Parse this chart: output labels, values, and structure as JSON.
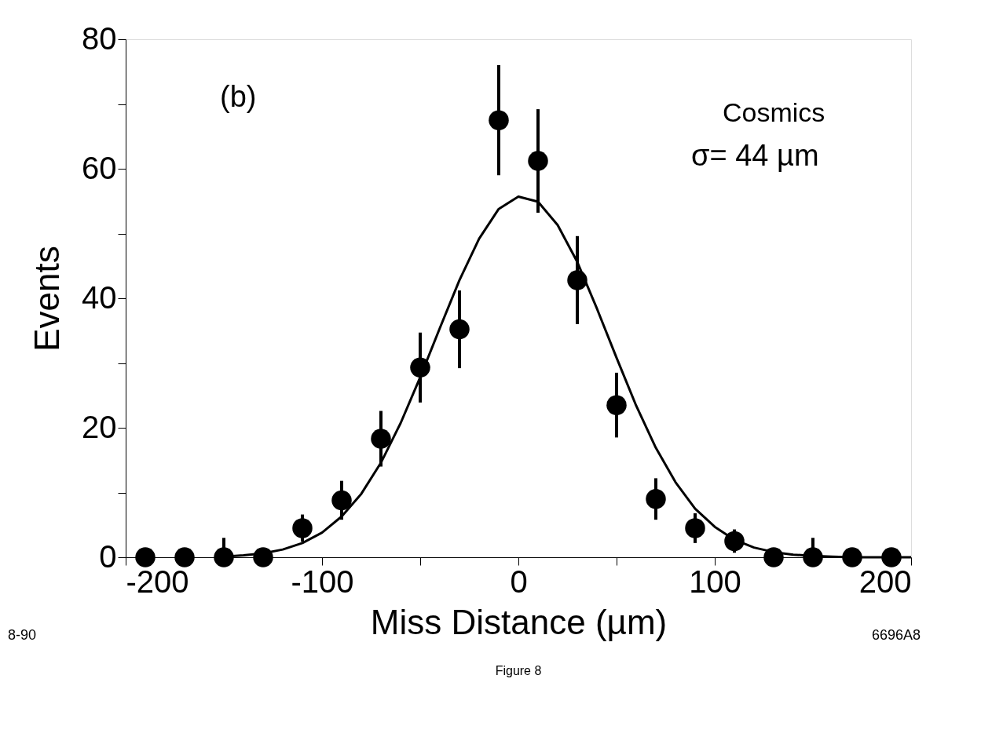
{
  "chart_data": {
    "type": "scatter",
    "xlabel": "Miss Distance    (µm)",
    "ylabel": "Events",
    "xlim": [
      -200,
      200
    ],
    "ylim": [
      0,
      80
    ],
    "xticks": [
      -200,
      {
        "value": -150,
        "label": null
      },
      -100,
      {
        "value": -50,
        "label": null
      },
      0,
      {
        "value": 50,
        "label": null
      },
      100,
      {
        "value": 150,
        "label": null
      },
      200
    ],
    "yticks": [
      0,
      {
        "value": 10,
        "label": null
      },
      20,
      {
        "value": 30,
        "label": null
      },
      40,
      {
        "value": 50,
        "label": null
      },
      60,
      {
        "value": 70,
        "label": null
      },
      80
    ],
    "grid": false,
    "marker": "circle",
    "annotations": [
      "(b)",
      "Cosmics",
      "σ= 44 µm",
      "8-90",
      "Figure 8",
      "6696A8"
    ],
    "series": [
      {
        "color": "#000000",
        "x": [
          -190,
          -170,
          -150,
          -130,
          -110,
          -90,
          -70,
          -50,
          -30,
          -10,
          10,
          30,
          50,
          70,
          90,
          110,
          130,
          150,
          170,
          190
        ],
        "values": [
          0,
          0,
          0,
          0,
          4.5,
          8.8,
          18.3,
          29.3,
          35.2,
          67.5,
          61.2,
          42.8,
          23.5,
          9.0,
          4.5,
          2.5,
          0,
          0,
          0,
          0
        ],
        "errors": [
          null,
          null,
          3,
          null,
          2.1,
          3,
          4.3,
          5.4,
          6,
          8.5,
          8,
          6.8,
          5,
          3.2,
          2.3,
          1.8,
          null,
          3,
          null,
          null
        ]
      },
      {
        "type": "line",
        "color": "#000000",
        "marker": "none",
        "line_style": "solid",
        "x": [
          -150,
          -140,
          -130,
          -120,
          -110,
          -100,
          -90,
          -80,
          -70,
          -60,
          -50,
          -40,
          -30,
          -20,
          -10,
          0,
          10,
          20,
          30,
          40,
          50,
          60,
          70,
          80,
          90,
          100,
          110,
          120,
          130,
          140,
          150,
          160,
          170,
          180,
          190,
          200
        ],
        "values": [
          0.1,
          0.3,
          0.6,
          1.2,
          2.2,
          3.8,
          6.3,
          9.8,
          14.6,
          20.7,
          27.8,
          35.4,
          42.8,
          49.2,
          53.8,
          55.7,
          54.9,
          51.3,
          45.6,
          38.4,
          30.8,
          23.4,
          16.9,
          11.6,
          7.5,
          4.7,
          2.7,
          1.5,
          0.8,
          0.4,
          0.2,
          0.1,
          0,
          0,
          0,
          0
        ]
      }
    ]
  }
}
